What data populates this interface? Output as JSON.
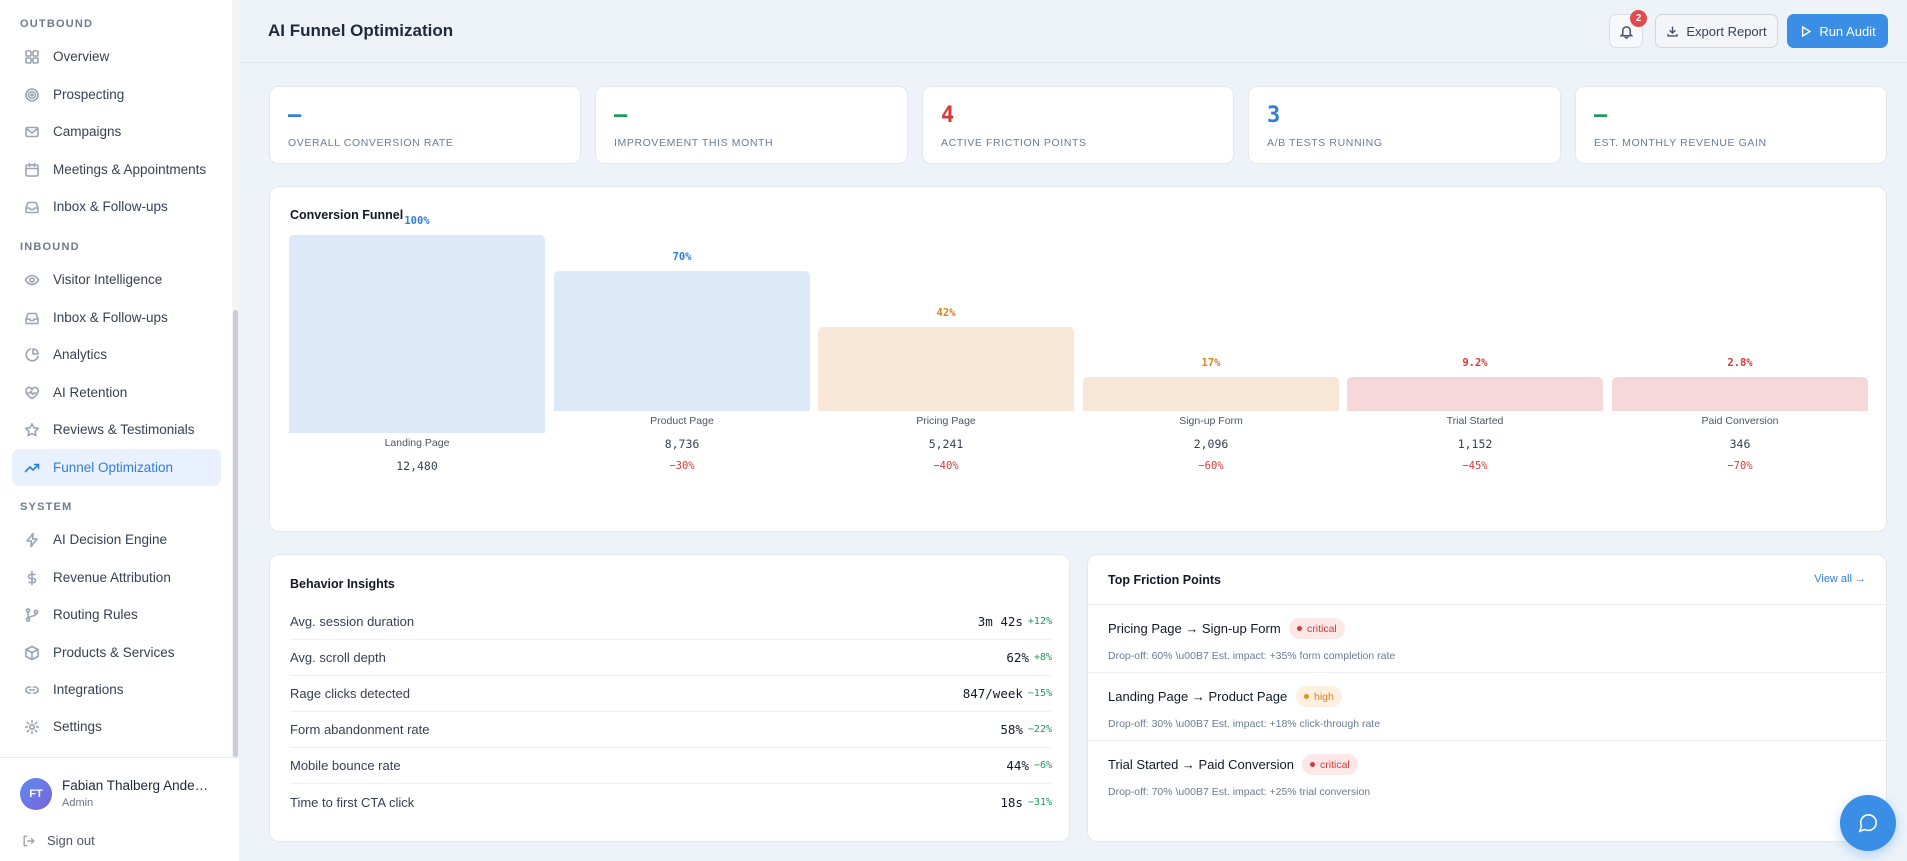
{
  "sidebar": {
    "sections": [
      {
        "label": "OUTBOUND"
      },
      {
        "label": "INBOUND"
      },
      {
        "label": "SYSTEM"
      }
    ],
    "items": [
      {
        "label": "Overview",
        "icon": "grid-icon"
      },
      {
        "label": "Prospecting",
        "icon": "target-icon"
      },
      {
        "label": "Campaigns",
        "icon": "mail-icon"
      },
      {
        "label": "Meetings & Appointments",
        "icon": "calendar-icon"
      },
      {
        "label": "Inbox & Follow-ups",
        "icon": "inbox-icon"
      },
      {
        "label": "Visitor Intelligence",
        "icon": "eye-icon"
      },
      {
        "label": "Inbox & Follow-ups",
        "icon": "inbox-icon"
      },
      {
        "label": "Analytics",
        "icon": "pie-chart-icon"
      },
      {
        "label": "AI Retention",
        "icon": "heart-pulse-icon"
      },
      {
        "label": "Reviews & Testimonials",
        "icon": "star-icon"
      },
      {
        "label": "Funnel Optimization",
        "icon": "trending-up-icon",
        "active": true
      },
      {
        "label": "AI Decision Engine",
        "icon": "zap-icon"
      },
      {
        "label": "Revenue Attribution",
        "icon": "dollar-icon"
      },
      {
        "label": "Routing Rules",
        "icon": "git-branch-icon"
      },
      {
        "label": "Products & Services",
        "icon": "package-icon"
      },
      {
        "label": "Integrations",
        "icon": "link-icon"
      },
      {
        "label": "Settings",
        "icon": "gear-icon"
      }
    ],
    "user": {
      "initials": "FT",
      "name": "Fabian Thalberg Andersen",
      "role": "Admin"
    },
    "signout_label": "Sign out"
  },
  "header": {
    "title": "AI Funnel Optimization",
    "notification_count": "2",
    "export_label": "Export Report",
    "run_label": "Run Audit"
  },
  "stats": [
    {
      "value": "–",
      "label": "OVERALL CONVERSION RATE",
      "color": "#2f7ed8"
    },
    {
      "value": "–",
      "label": "IMPROVEMENT THIS MONTH",
      "color": "#1a9c5b"
    },
    {
      "value": "4",
      "label": "ACTIVE FRICTION POINTS",
      "color": "#d13b3b"
    },
    {
      "value": "3",
      "label": "A/B TESTS RUNNING",
      "color": "#2f7ed8"
    },
    {
      "value": "–",
      "label": "EST. MONTHLY REVENUE GAIN",
      "color": "#1a9c5b"
    }
  ],
  "funnel": {
    "title": "Conversion Funnel",
    "stages": [
      {
        "name": "Landing Page",
        "pct": "100%",
        "count": "12,480",
        "drop": "",
        "level": 100,
        "tone": "blue"
      },
      {
        "name": "Product Page",
        "pct": "70%",
        "count": "8,736",
        "drop": "−30%",
        "level": 70,
        "tone": "blue"
      },
      {
        "name": "Pricing Page",
        "pct": "42%",
        "count": "5,241",
        "drop": "−40%",
        "level": 42,
        "tone": "orange"
      },
      {
        "name": "Sign-up Form",
        "pct": "17%",
        "count": "2,096",
        "drop": "−60%",
        "level": 17,
        "tone": "orange"
      },
      {
        "name": "Trial Started",
        "pct": "9.2%",
        "count": "1,152",
        "drop": "−45%",
        "level": 9.2,
        "tone": "red"
      },
      {
        "name": "Paid Conversion",
        "pct": "2.8%",
        "count": "346",
        "drop": "−70%",
        "level": 2.8,
        "tone": "red"
      }
    ]
  },
  "behavior": {
    "title": "Behavior Insights",
    "rows": [
      {
        "label": "Avg. session duration",
        "value": "3m 42s",
        "delta": "+12%"
      },
      {
        "label": "Avg. scroll depth",
        "value": "62%",
        "delta": "+8%"
      },
      {
        "label": "Rage clicks detected",
        "value": "847/week",
        "delta": "−15%"
      },
      {
        "label": "Form abandonment rate",
        "value": "58%",
        "delta": "−22%"
      },
      {
        "label": "Mobile bounce rate",
        "value": "44%",
        "delta": "−6%"
      },
      {
        "label": "Time to first CTA click",
        "value": "18s",
        "delta": "−31%"
      }
    ]
  },
  "friction": {
    "title": "Top Friction Points",
    "view_all": "View all →",
    "items": [
      {
        "title": "Pricing Page → Sign-up Form",
        "severity": "critical",
        "meta": "Drop-off: 60% \\u00B7 Est. impact: +35% form completion rate"
      },
      {
        "title": "Landing Page → Product Page",
        "severity": "high",
        "meta": "Drop-off: 30% \\u00B7 Est. impact: +18% click-through rate"
      },
      {
        "title": "Trial Started → Paid Conversion",
        "severity": "critical",
        "meta": "Drop-off: 70% \\u00B7 Est. impact: +25% trial conversion"
      }
    ]
  },
  "colors": {
    "accent": "#3b8ee6",
    "blue_bar": "#dbe9f8",
    "orange_bar": "#f8e6d6",
    "red_bar": "#f6d8da",
    "blue_text": "#2f7ed8",
    "orange_text": "#d9821e",
    "red_text": "#d13b3b"
  }
}
